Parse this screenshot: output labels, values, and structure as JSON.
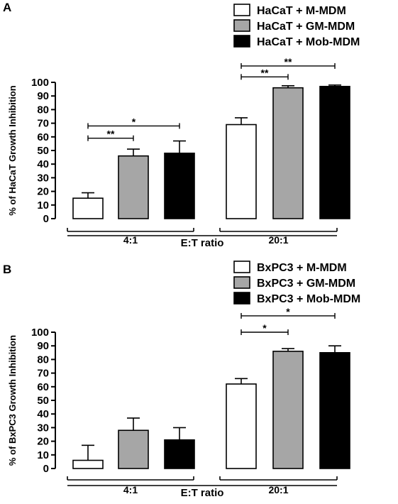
{
  "chart_data": [
    {
      "type": "bar",
      "panel": "A",
      "ylabel": "% of HaCaT Growth Inhibition",
      "xlabel": "E:T ratio",
      "categories": [
        "4:1",
        "20:1"
      ],
      "ylim": [
        0,
        100
      ],
      "yticks": [
        0,
        10,
        20,
        30,
        40,
        50,
        60,
        70,
        80,
        90,
        100
      ],
      "legend_position": "top-right",
      "series": [
        {
          "name": "HaCaT + M-MDM",
          "color": "#ffffff",
          "values": [
            15,
            69
          ],
          "errors": [
            4,
            5
          ]
        },
        {
          "name": "HaCaT + GM-MDM",
          "color": "#a6a6a6",
          "values": [
            46,
            96
          ],
          "errors": [
            5,
            1.5
          ]
        },
        {
          "name": "HaCaT + Mob-MDM",
          "color": "#000000",
          "values": [
            48,
            97
          ],
          "errors": [
            9,
            1
          ]
        }
      ],
      "significance": [
        {
          "category": "4:1",
          "from": 0,
          "to": 1,
          "label": "**",
          "y": 59
        },
        {
          "category": "4:1",
          "from": 0,
          "to": 2,
          "label": "*",
          "y": 68
        },
        {
          "category": "20:1",
          "from": 0,
          "to": 1,
          "label": "**",
          "y": 104
        },
        {
          "category": "20:1",
          "from": 0,
          "to": 2,
          "label": "**",
          "y": 112
        }
      ]
    },
    {
      "type": "bar",
      "panel": "B",
      "ylabel": "% of BxPC3 Growth Inhibition",
      "xlabel": "E:T ratio",
      "categories": [
        "4:1",
        "20:1"
      ],
      "ylim": [
        0,
        100
      ],
      "yticks": [
        0,
        10,
        20,
        30,
        40,
        50,
        60,
        70,
        80,
        90,
        100
      ],
      "legend_position": "top-right",
      "series": [
        {
          "name": "BxPC3 + M-MDM",
          "color": "#ffffff",
          "values": [
            6,
            62
          ],
          "errors": [
            11,
            4
          ]
        },
        {
          "name": "BxPC3 + GM-MDM",
          "color": "#a6a6a6",
          "values": [
            28,
            86
          ],
          "errors": [
            9,
            2
          ]
        },
        {
          "name": "BxPC3 + Mob-MDM",
          "color": "#000000",
          "values": [
            21,
            85
          ],
          "errors": [
            9,
            5
          ]
        }
      ],
      "significance": [
        {
          "category": "20:1",
          "from": 0,
          "to": 1,
          "label": "*",
          "y": 100
        },
        {
          "category": "20:1",
          "from": 0,
          "to": 2,
          "label": "*",
          "y": 112
        }
      ]
    }
  ]
}
